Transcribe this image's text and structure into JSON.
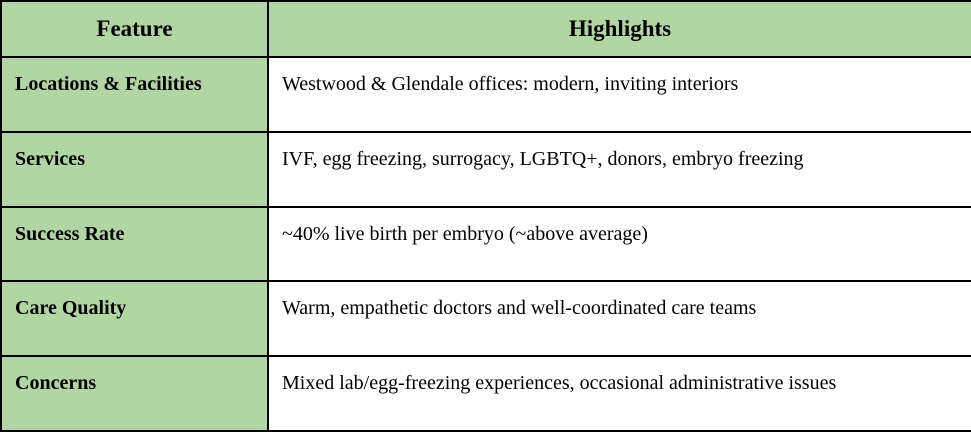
{
  "table": {
    "colors": {
      "header_bg": "#b2d5a4",
      "feature_bg": "#b2d5a4",
      "cell_bg": "#ffffff",
      "border": "#000000",
      "text": "#000000"
    },
    "headers": {
      "feature": "Feature",
      "highlights": "Highlights"
    },
    "rows": [
      {
        "feature": "Locations & Facilities",
        "highlights": "Westwood & Glendale offices: modern, inviting interiors"
      },
      {
        "feature": "Services",
        "highlights": "IVF, egg freezing, surrogacy, LGBTQ+, donors, embryo freezing"
      },
      {
        "feature": "Success Rate",
        "highlights": "~40% live birth per embryo (~above average)"
      },
      {
        "feature": "Care Quality",
        "highlights": "Warm, empathetic doctors and well-coordinated care teams"
      },
      {
        "feature": "Concerns",
        "highlights": "Mixed lab/egg-freezing experiences, occasional administrative issues"
      }
    ]
  }
}
